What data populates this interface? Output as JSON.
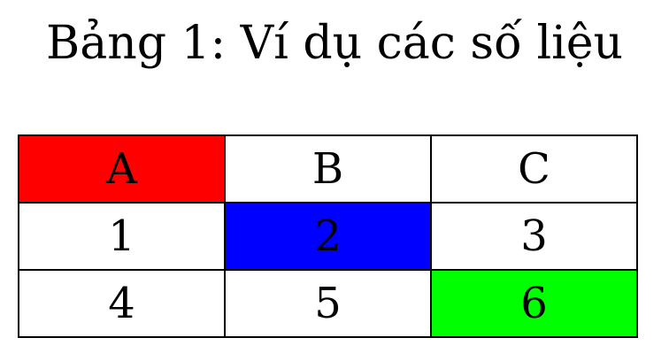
{
  "caption": "Bảng 1: Ví dụ các số liệu",
  "table": {
    "rows": [
      [
        {
          "text": "A",
          "bg": "#ff0000"
        },
        {
          "text": "B",
          "bg": "#ffffff"
        },
        {
          "text": "C",
          "bg": "#ffffff"
        }
      ],
      [
        {
          "text": "1",
          "bg": "#ffffff"
        },
        {
          "text": "2",
          "bg": "#0000ff"
        },
        {
          "text": "3",
          "bg": "#ffffff"
        }
      ],
      [
        {
          "text": "4",
          "bg": "#ffffff"
        },
        {
          "text": "5",
          "bg": "#ffffff"
        },
        {
          "text": "6",
          "bg": "#00ff00"
        }
      ]
    ]
  }
}
